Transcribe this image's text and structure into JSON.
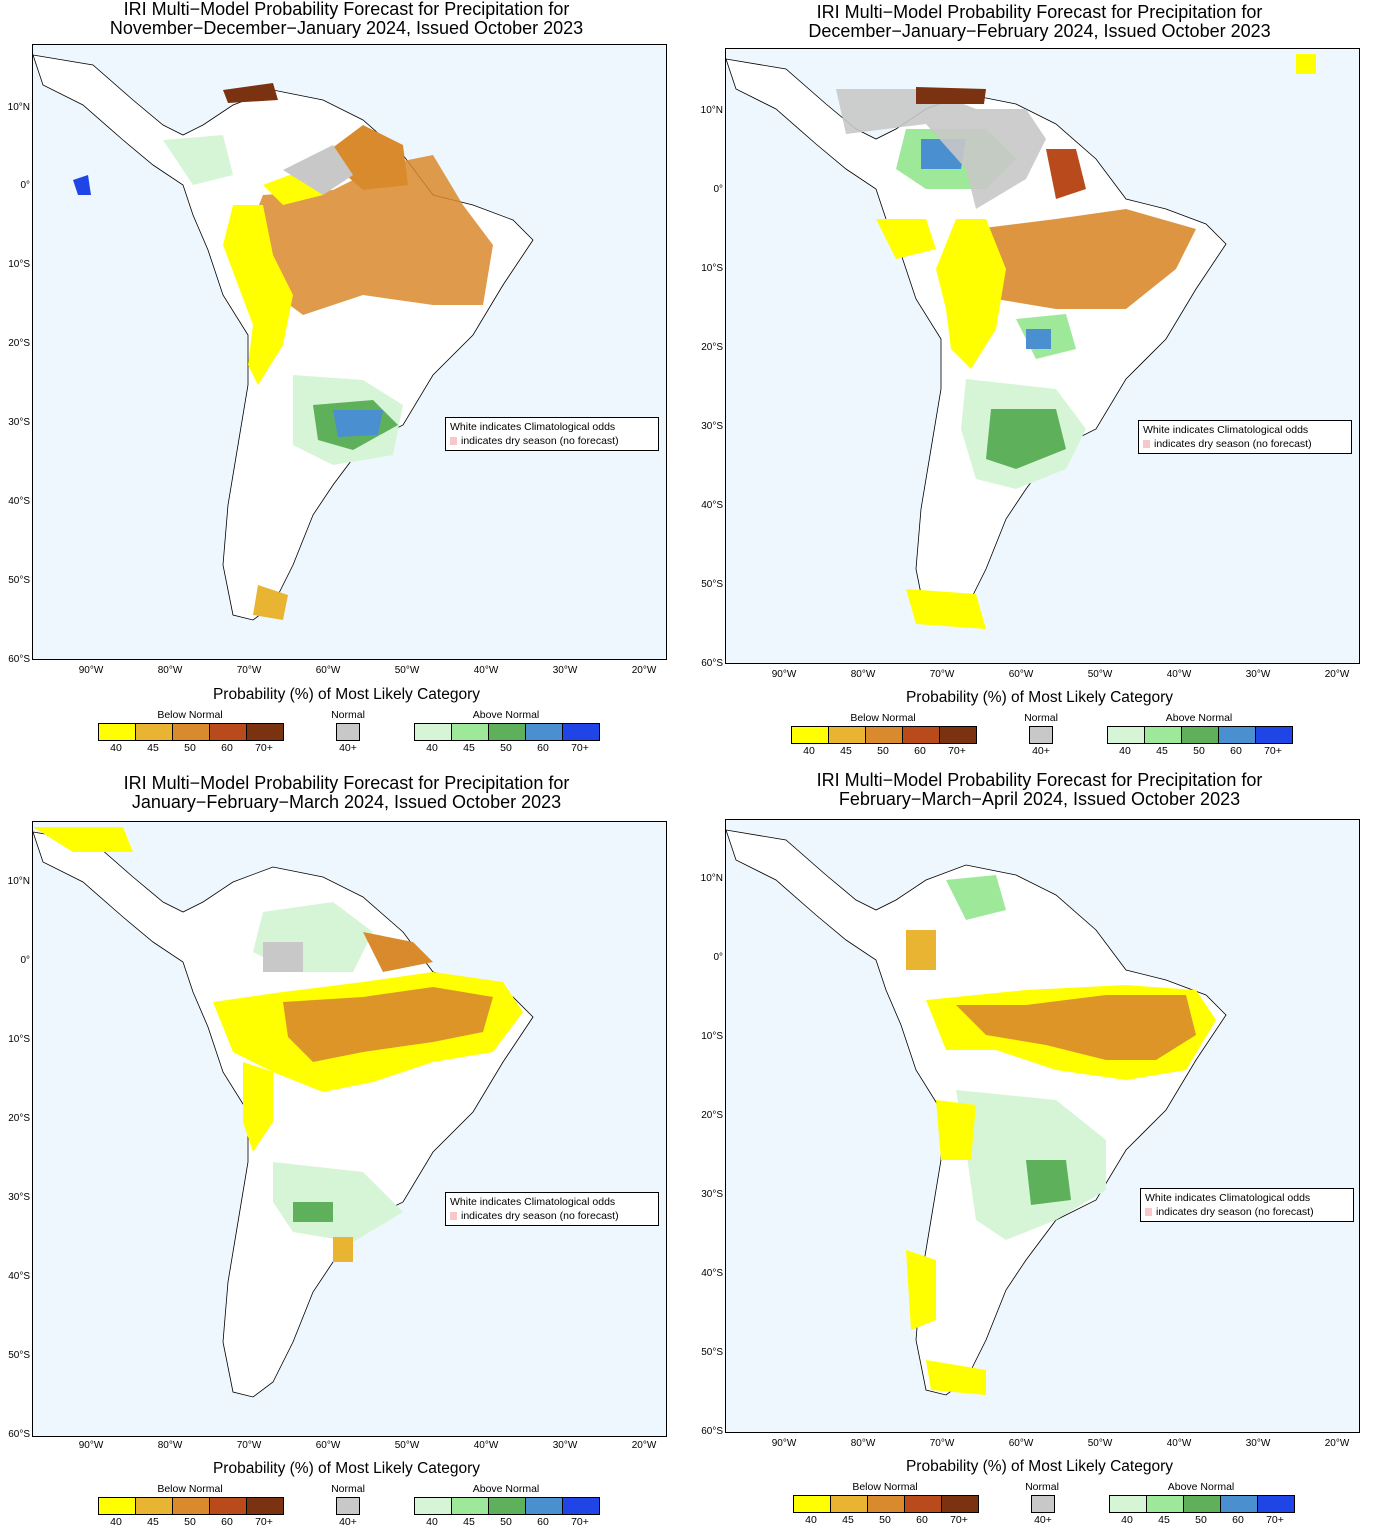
{
  "panels": [
    {
      "title": "IRI Multi−Model Probability Forecast for Precipitation for\nNovember−December−January 2024, Issued October 2023"
    },
    {
      "title": "IRI Multi−Model Probability Forecast for Precipitation for\nDecember−January−February 2024, Issued October 2023"
    },
    {
      "title": "IRI Multi−Model Probability Forecast for Precipitation for\nJanuary−February−March 2024, Issued October 2023"
    },
    {
      "title": "IRI Multi−Model Probability Forecast for Precipitation for\nFebruary−March−April 2024, Issued October 2023"
    }
  ],
  "lat_labels": [
    "10°N",
    "0°",
    "10°S",
    "20°S",
    "30°S",
    "40°S",
    "50°S",
    "60°S"
  ],
  "lon_labels": [
    "90°W",
    "80°W",
    "70°W",
    "60°W",
    "50°W",
    "40°W",
    "30°W",
    "20°W"
  ],
  "legend": {
    "line1": "White indicates Climatological odds",
    "line2": "indicates dry season (no forecast)"
  },
  "colorbar": {
    "title": "Probability (%) of Most Likely Category",
    "below_label": "Below Normal",
    "normal_label": "Normal",
    "above_label": "Above Normal",
    "below_ticks": [
      "40",
      "45",
      "50",
      "60",
      "70+"
    ],
    "normal_ticks": [
      "40+"
    ],
    "above_ticks": [
      "40",
      "45",
      "50",
      "60",
      "70+"
    ],
    "below_colors": [
      "#ffff00",
      "#e8b432",
      "#d98a2c",
      "#b84a1c",
      "#7a3210"
    ],
    "normal_colors": [
      "#c8c8c8"
    ],
    "above_colors": [
      "#d6f5d6",
      "#9ee89a",
      "#5fb05a",
      "#4a8fd0",
      "#1f45e6"
    ]
  },
  "colors": {
    "ocean": "#eef7fd",
    "land": "#ffffff",
    "dry_season": "#f8c8c8"
  }
}
